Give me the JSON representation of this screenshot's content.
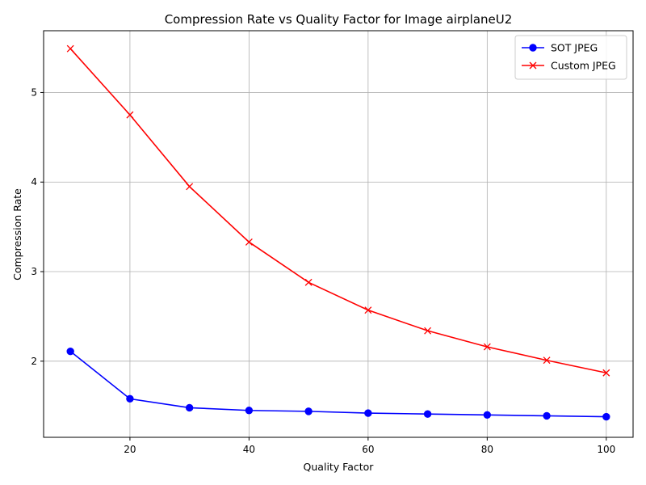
{
  "chart_data": {
    "type": "line",
    "title": "Compression Rate vs Quality Factor for Image airplaneU2",
    "xlabel": "Quality Factor",
    "ylabel": "Compression Rate",
    "xlim": [
      5.5,
      104.5
    ],
    "ylim": [
      1.15,
      5.69
    ],
    "xticks": [
      20,
      40,
      60,
      80,
      100
    ],
    "yticks": [
      2,
      3,
      4,
      5
    ],
    "grid": true,
    "legend_position": "top-right",
    "x": [
      10,
      20,
      30,
      40,
      50,
      60,
      70,
      80,
      90,
      100
    ],
    "series": [
      {
        "name": "SOT JPEG",
        "color": "#0000ff",
        "marker": "circle",
        "values": [
          2.11,
          1.58,
          1.48,
          1.45,
          1.44,
          1.42,
          1.41,
          1.4,
          1.39,
          1.38
        ]
      },
      {
        "name": "Custom JPEG",
        "color": "#ff0000",
        "marker": "x",
        "values": [
          5.49,
          4.75,
          3.95,
          3.33,
          2.88,
          2.57,
          2.34,
          2.16,
          2.01,
          1.87
        ]
      }
    ]
  }
}
